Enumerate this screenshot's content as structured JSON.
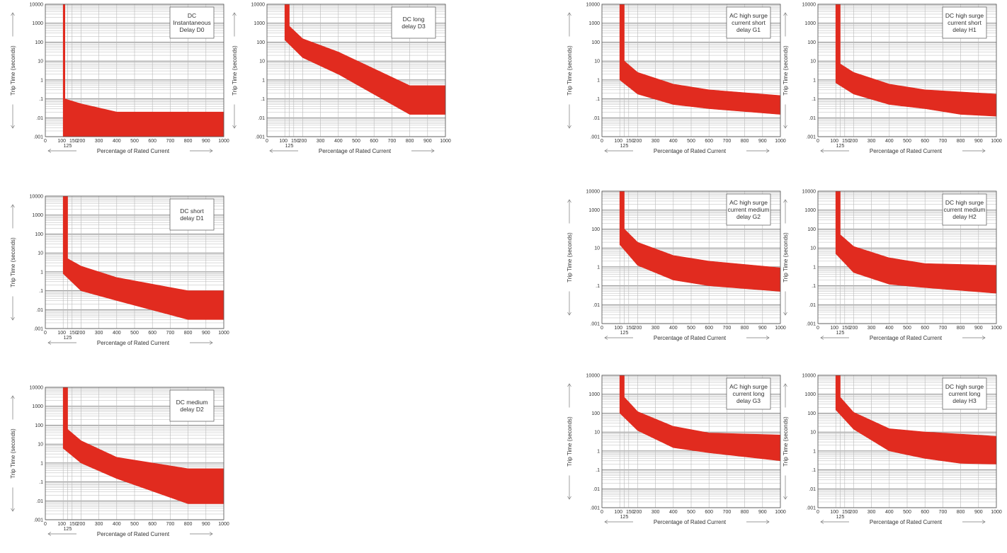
{
  "colors": {
    "band": "#e12b1f",
    "grid_major": "#8a8a8a",
    "grid_minor": "#b8b8b8",
    "axis": "#555555",
    "arrow": "#777777"
  },
  "axes": {
    "xlabel": "Percentage of Rated Current",
    "ylabel": "Trip Time (seconds)",
    "x_ticks": [
      "0",
      "100",
      "150",
      "200",
      "300",
      "400",
      "500",
      "600",
      "700",
      "800",
      "900",
      "1000"
    ],
    "x_tick_extra": "125",
    "y_ticks": [
      ".001",
      ".01",
      ".1",
      "1",
      "10",
      "100",
      "1000",
      "10000"
    ],
    "xlim": [
      0,
      1000
    ],
    "ylim": [
      0.001,
      10000
    ],
    "y_scale": "log"
  },
  "chart_data": [
    {
      "id": "d0",
      "type": "area",
      "title": [
        "DC",
        "Instantaneous",
        "Delay D0"
      ],
      "upper": [
        [
          110,
          10000
        ],
        [
          110,
          0.1
        ],
        [
          200,
          0.055
        ],
        [
          400,
          0.02
        ],
        [
          1000,
          0.02
        ]
      ],
      "lower": [
        [
          100,
          10000
        ],
        [
          100,
          0.001
        ],
        [
          1000,
          0.001
        ]
      ]
    },
    {
      "id": "d3",
      "type": "area",
      "title": [
        "DC long",
        "delay D3"
      ],
      "upper": [
        [
          125,
          10000
        ],
        [
          125,
          700
        ],
        [
          200,
          150
        ],
        [
          400,
          30
        ],
        [
          800,
          0.5
        ],
        [
          1000,
          0.5
        ]
      ],
      "lower": [
        [
          100,
          10000
        ],
        [
          100,
          130
        ],
        [
          200,
          15
        ],
        [
          400,
          2
        ],
        [
          800,
          0.015
        ],
        [
          1000,
          0.015
        ]
      ]
    },
    {
      "id": "d1",
      "type": "area",
      "title": [
        "DC short",
        "delay D1"
      ],
      "upper": [
        [
          125,
          10000
        ],
        [
          125,
          5
        ],
        [
          200,
          2
        ],
        [
          400,
          0.5
        ],
        [
          800,
          0.1
        ],
        [
          1000,
          0.1
        ]
      ],
      "lower": [
        [
          100,
          10000
        ],
        [
          100,
          0.8
        ],
        [
          200,
          0.1
        ],
        [
          400,
          0.03
        ],
        [
          800,
          0.003
        ],
        [
          1000,
          0.003
        ]
      ]
    },
    {
      "id": "d2",
      "type": "area",
      "title": [
        "DC medium",
        "delay D2"
      ],
      "upper": [
        [
          125,
          10000
        ],
        [
          125,
          60
        ],
        [
          200,
          15
        ],
        [
          400,
          2
        ],
        [
          800,
          0.5
        ],
        [
          1000,
          0.5
        ]
      ],
      "lower": [
        [
          100,
          10000
        ],
        [
          100,
          6
        ],
        [
          200,
          1
        ],
        [
          400,
          0.15
        ],
        [
          800,
          0.007
        ],
        [
          1000,
          0.007
        ]
      ]
    },
    {
      "id": "g1",
      "type": "area",
      "title": [
        "AC high surge",
        "current short",
        "delay G1"
      ],
      "upper": [
        [
          125,
          10000
        ],
        [
          125,
          10
        ],
        [
          200,
          2.5
        ],
        [
          400,
          0.6
        ],
        [
          600,
          0.3
        ],
        [
          1000,
          0.15
        ]
      ],
      "lower": [
        [
          100,
          10000
        ],
        [
          100,
          1
        ],
        [
          200,
          0.18
        ],
        [
          400,
          0.05
        ],
        [
          600,
          0.03
        ],
        [
          1000,
          0.015
        ]
      ]
    },
    {
      "id": "h1",
      "type": "area",
      "title": [
        "DC high surge",
        "current short",
        "delay H1"
      ],
      "upper": [
        [
          125,
          10000
        ],
        [
          125,
          7
        ],
        [
          200,
          2.5
        ],
        [
          400,
          0.6
        ],
        [
          600,
          0.3
        ],
        [
          1000,
          0.18
        ]
      ],
      "lower": [
        [
          100,
          10000
        ],
        [
          100,
          0.7
        ],
        [
          200,
          0.18
        ],
        [
          400,
          0.05
        ],
        [
          600,
          0.03
        ],
        [
          800,
          0.015
        ],
        [
          1000,
          0.012
        ]
      ]
    },
    {
      "id": "g2",
      "type": "area",
      "title": [
        "AC high surge",
        "current medium",
        "delay G2"
      ],
      "upper": [
        [
          125,
          10000
        ],
        [
          125,
          100
        ],
        [
          200,
          20
        ],
        [
          400,
          4
        ],
        [
          600,
          2
        ],
        [
          1000,
          0.9
        ]
      ],
      "lower": [
        [
          100,
          10000
        ],
        [
          100,
          15
        ],
        [
          200,
          1.2
        ],
        [
          400,
          0.2
        ],
        [
          600,
          0.1
        ],
        [
          1000,
          0.05
        ]
      ]
    },
    {
      "id": "h2",
      "type": "area",
      "title": [
        "DC high surge",
        "current medium",
        "delay H2"
      ],
      "upper": [
        [
          125,
          10000
        ],
        [
          125,
          50
        ],
        [
          200,
          12
        ],
        [
          400,
          3
        ],
        [
          600,
          1.5
        ],
        [
          1000,
          1.2
        ]
      ],
      "lower": [
        [
          100,
          10000
        ],
        [
          100,
          5
        ],
        [
          200,
          0.5
        ],
        [
          400,
          0.12
        ],
        [
          600,
          0.08
        ],
        [
          1000,
          0.04
        ]
      ]
    },
    {
      "id": "g3",
      "type": "area",
      "title": [
        "AC high surge",
        "current long",
        "delay G3"
      ],
      "upper": [
        [
          125,
          10000
        ],
        [
          125,
          700
        ],
        [
          200,
          120
        ],
        [
          400,
          20
        ],
        [
          600,
          9
        ],
        [
          1000,
          7
        ]
      ],
      "lower": [
        [
          100,
          10000
        ],
        [
          100,
          100
        ],
        [
          200,
          12
        ],
        [
          400,
          1.5
        ],
        [
          600,
          0.8
        ],
        [
          1000,
          0.3
        ]
      ]
    },
    {
      "id": "h3",
      "type": "area",
      "title": [
        "DC high surge",
        "current long",
        "delay H3"
      ],
      "upper": [
        [
          125,
          10000
        ],
        [
          125,
          700
        ],
        [
          200,
          110
        ],
        [
          400,
          15
        ],
        [
          600,
          10
        ],
        [
          1000,
          6
        ]
      ],
      "lower": [
        [
          100,
          10000
        ],
        [
          100,
          150
        ],
        [
          200,
          14
        ],
        [
          400,
          1
        ],
        [
          600,
          0.4
        ],
        [
          800,
          0.22
        ],
        [
          1000,
          0.2
        ]
      ]
    }
  ]
}
